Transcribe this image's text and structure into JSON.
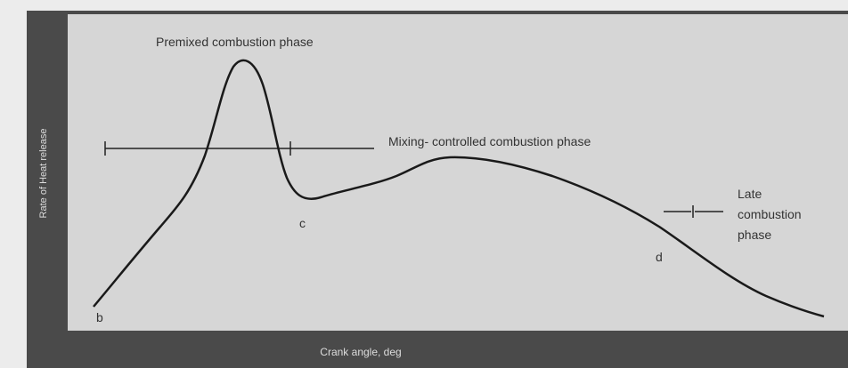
{
  "title": "Premixed combustion phase",
  "phases": {
    "mixing": "Mixing- controlled combustion phase",
    "late": [
      "Late",
      "combustion",
      "phase"
    ]
  },
  "points": [
    "b",
    "c",
    "d"
  ],
  "axes": {
    "y_label": "Rate of Heat release",
    "x_label": "Crank angle, deg"
  }
}
